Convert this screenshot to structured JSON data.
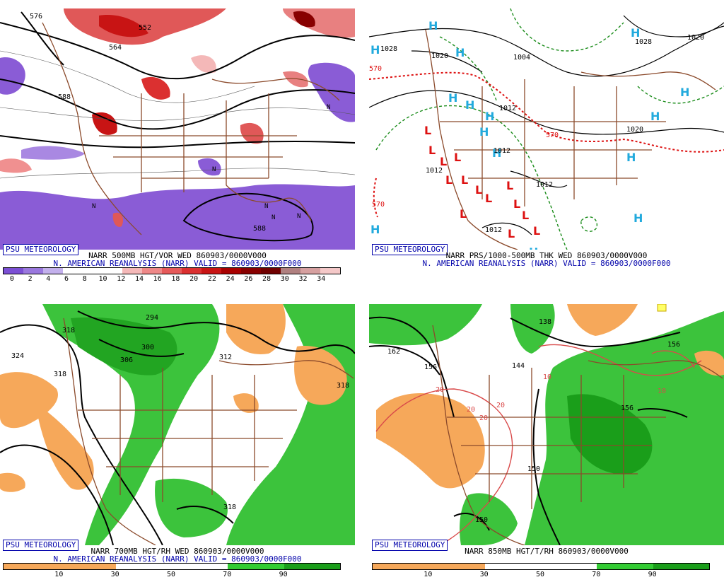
{
  "panels": {
    "p1": {
      "psu_label": "PSU METEOROLOGY",
      "title1": "NARR 500MB HGT/VOR WED 860903/0000V000",
      "title2": "N. AMERICAN REANALYSIS (NARR) VALID = 860903/0000F000",
      "contour_labels": [
        "576",
        "552",
        "564",
        "588",
        "588"
      ],
      "colorbar_ticks": [
        "0",
        "2",
        "4",
        "6",
        "8",
        "10",
        "12",
        "14",
        "16",
        "18",
        "20",
        "22",
        "24",
        "26",
        "28",
        "30",
        "32",
        "34"
      ],
      "colorbar_colors": [
        "#7b4fd4",
        "#9a78de",
        "#c3b0ec",
        "#ffffff",
        "#ffffff",
        "#ffffff",
        "#f4b8b8",
        "#ee8888",
        "#e65a5a",
        "#db3030",
        "#c81414",
        "#a80000",
        "#880000",
        "#700000",
        "#b08080",
        "#d6a0a0",
        "#f4c8c8"
      ]
    },
    "p2": {
      "psu_label": "PSU METEOROLOGY",
      "title1": "NARR PRS/1000-500MB THK WED 860903/0000V000",
      "title2": "N. AMERICAN REANALYSIS (NARR) VALID = 860903/0000F000",
      "contour_labels": [
        "1028",
        "1020",
        "1004",
        "1012",
        "1012",
        "1012",
        "1012",
        "1020",
        "1028",
        "1020",
        "1012",
        "570",
        "570",
        "570"
      ]
    },
    "p3": {
      "psu_label": "PSU METEOROLOGY",
      "title1": "NARR 700MB HGT/RH WED 860903/0000V000",
      "title2": "N. AMERICAN REANALYSIS (NARR) VALID = 860903/0000F000",
      "contour_labels": [
        "324",
        "318",
        "318",
        "300",
        "306",
        "294",
        "312",
        "318",
        "318"
      ],
      "colorbar_ticks": [
        "10",
        "30",
        "50",
        "70",
        "90"
      ],
      "colorbar_colors": [
        "#f6a85a",
        "#f6a85a",
        "#ffffff",
        "#ffffff",
        "#33cc33",
        "#1a9e1a"
      ]
    },
    "p4": {
      "psu_label": "PSU METEOROLOGY",
      "title1": "NARR 850MB HGT/T/RH 860903/0000V000",
      "contour_labels": [
        "162",
        "156",
        "138",
        "144",
        "156",
        "150",
        "150",
        "156",
        "20",
        "20",
        "20",
        "10",
        "10",
        "20"
      ],
      "colorbar_ticks": [
        "10",
        "30",
        "50",
        "70",
        "90"
      ],
      "colorbar_colors": [
        "#f6a85a",
        "#f6a85a",
        "#ffffff",
        "#ffffff",
        "#33cc33",
        "#1a9e1a"
      ]
    }
  }
}
